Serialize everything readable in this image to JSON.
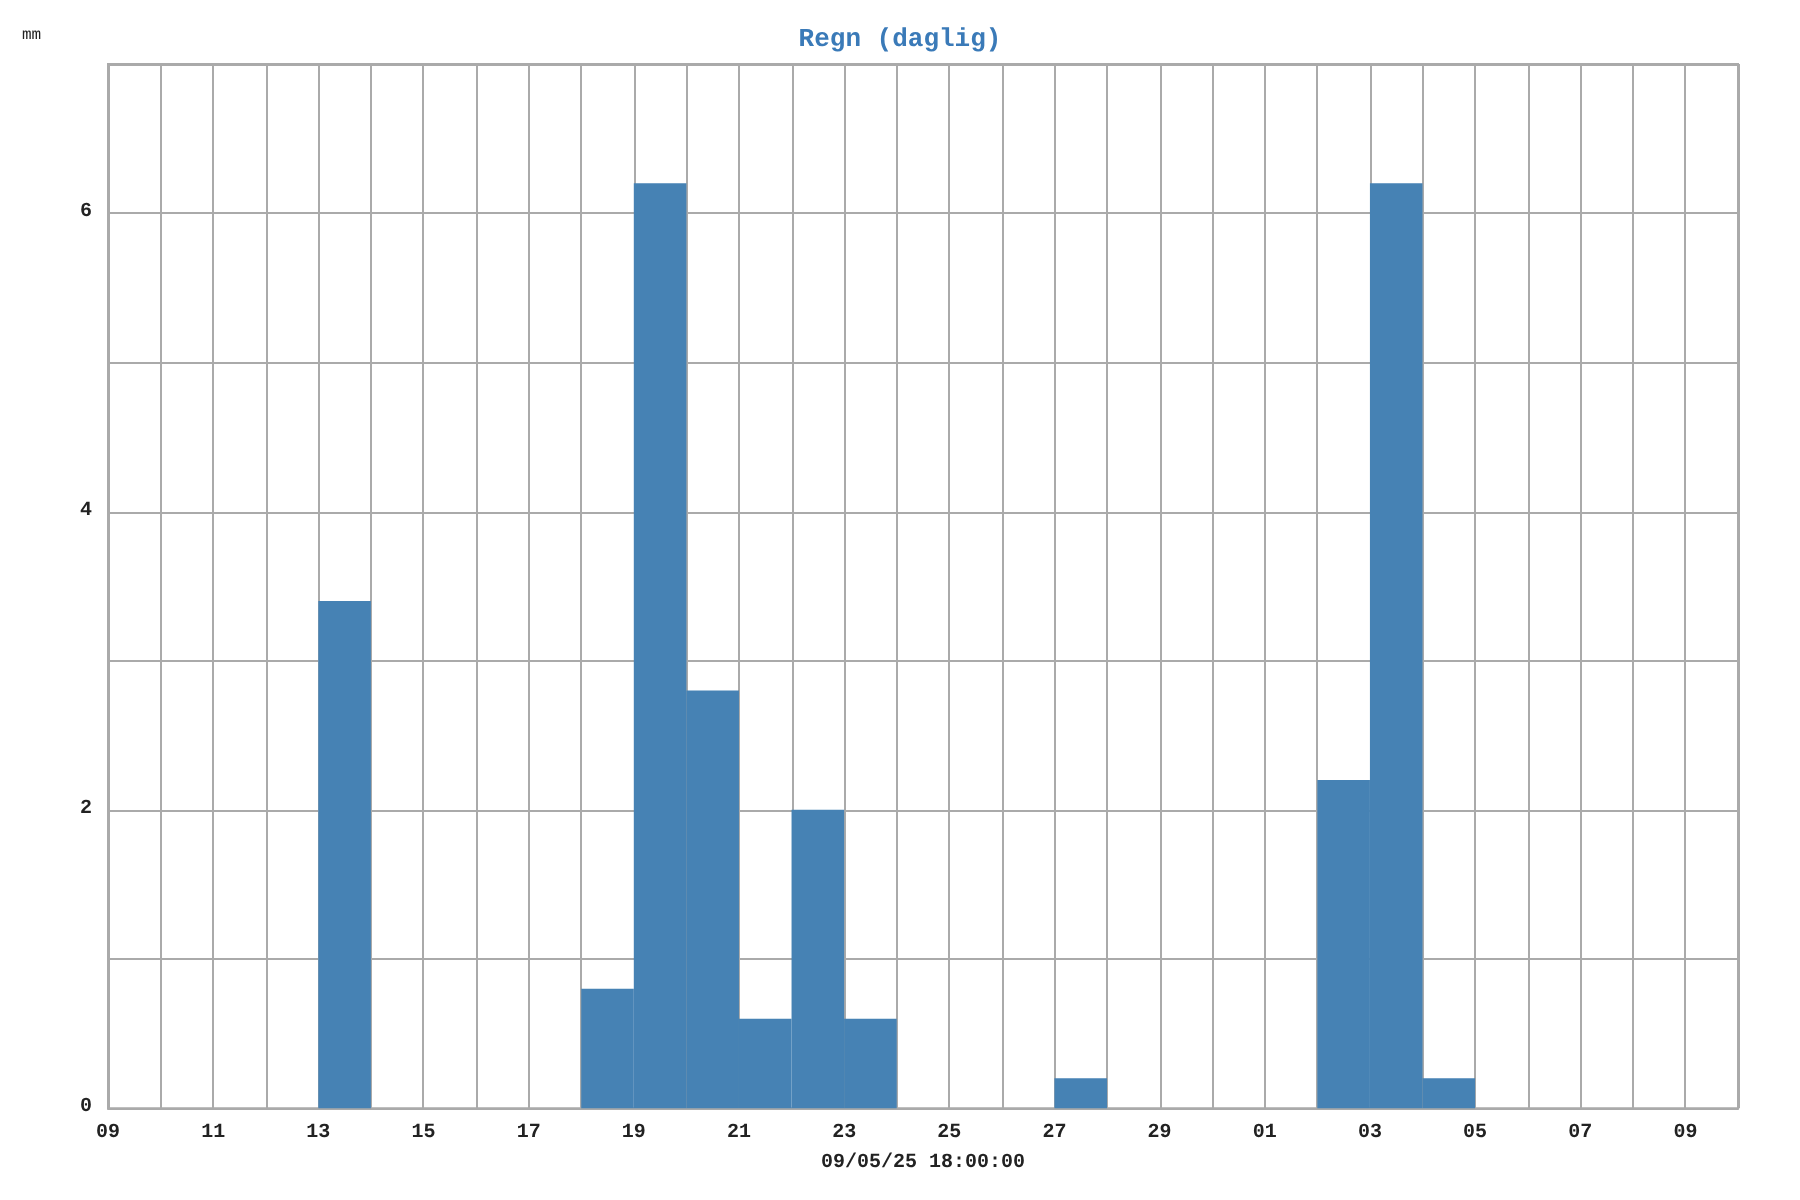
{
  "chart_data": {
    "type": "bar",
    "title": "Regn (daglig)",
    "ylabel": "mm",
    "xlabel": "09/05/25 18:00:00",
    "x": [
      "--04-13T12:00",
      "--04-18T12:00",
      "--04-19T12:00",
      "--04-20T12:00",
      "--04-21T12:00",
      "--04-22T12:00",
      "--04-23T12:00",
      "--04-27T12:00",
      "--05-02T12:00",
      "--05-03T12:00",
      "--05-04T12:00"
    ],
    "values": [
      3.4,
      0.8,
      6.2,
      2.8,
      0.6,
      2.0,
      0.6,
      0.2,
      2.2,
      6.2,
      0.2
    ],
    "color": "#4682b4",
    "xlim": [
      "--04-09",
      "--05-10"
    ],
    "xticks": [
      {
        "value": "--04-09",
        "label": "09"
      },
      {
        "value": "--04-10",
        "label": null
      },
      {
        "value": "--04-11",
        "label": "11"
      },
      {
        "value": "--04-12",
        "label": null
      },
      {
        "value": "--04-13",
        "label": "13"
      },
      {
        "value": "--04-14",
        "label": null
      },
      {
        "value": "--04-15",
        "label": "15"
      },
      {
        "value": "--04-16",
        "label": null
      },
      {
        "value": "--04-17",
        "label": "17"
      },
      {
        "value": "--04-18",
        "label": null
      },
      {
        "value": "--04-19",
        "label": "19"
      },
      {
        "value": "--04-20",
        "label": null
      },
      {
        "value": "--04-21",
        "label": "21"
      },
      {
        "value": "--04-22",
        "label": null
      },
      {
        "value": "--04-23",
        "label": "23"
      },
      {
        "value": "--04-24",
        "label": null
      },
      {
        "value": "--04-25",
        "label": "25"
      },
      {
        "value": "--04-26",
        "label": null
      },
      {
        "value": "--04-27",
        "label": "27"
      },
      {
        "value": "--04-28",
        "label": null
      },
      {
        "value": "--04-29",
        "label": "29"
      },
      {
        "value": "--04-30",
        "label": null
      },
      {
        "value": "--05-01",
        "label": "01"
      },
      {
        "value": "--05-02",
        "label": null
      },
      {
        "value": "--05-03",
        "label": "03"
      },
      {
        "value": "--05-04",
        "label": null
      },
      {
        "value": "--05-05",
        "label": "05"
      },
      {
        "value": "--05-06",
        "label": null
      },
      {
        "value": "--05-07",
        "label": "07"
      },
      {
        "value": "--05-08",
        "label": null
      },
      {
        "value": "--05-09",
        "label": "09"
      },
      {
        "value": "--05-10",
        "label": null
      }
    ],
    "ylim": [
      0,
      7
    ],
    "yticks": [
      0,
      {
        "value": 1,
        "label": null
      },
      2,
      {
        "value": 3,
        "label": null
      },
      4,
      {
        "value": 5,
        "label": null
      },
      6,
      {
        "value": 7,
        "label": null
      }
    ],
    "grid": true
  }
}
